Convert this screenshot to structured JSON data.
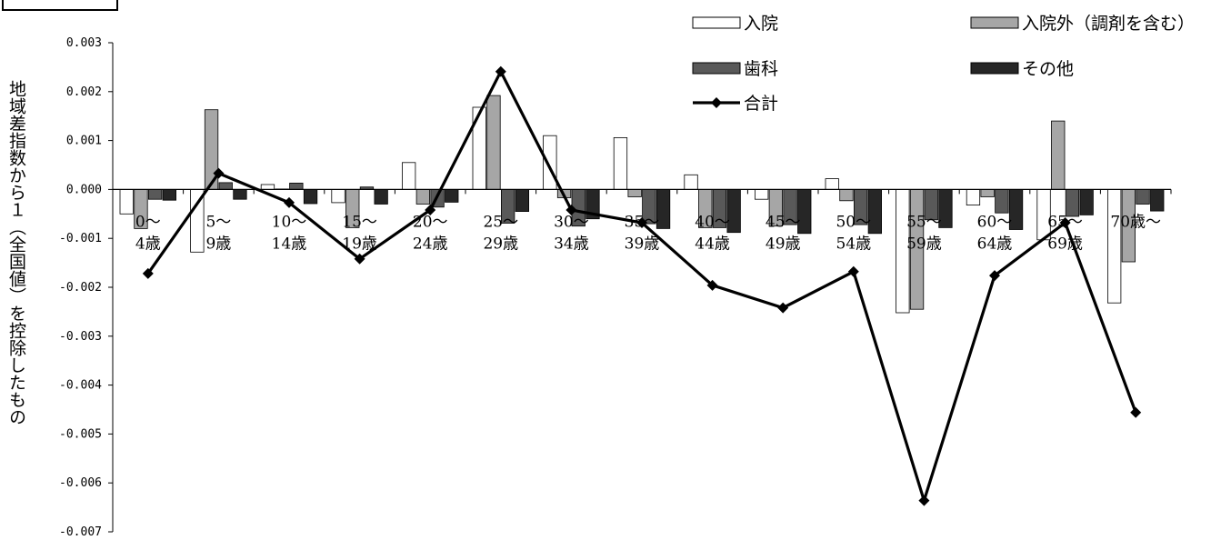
{
  "chart_data": {
    "type": "bar",
    "ylabel": "地域差指数から１（全国値）を控除したもの",
    "ylim": [
      -0.007,
      0.003
    ],
    "yticks": [
      "0.003",
      "0.002",
      "0.001",
      "0.000",
      "-0.001",
      "-0.002",
      "-0.003",
      "-0.004",
      "-0.005",
      "-0.006",
      "-0.007"
    ],
    "categories": [
      [
        "0～",
        "4歳"
      ],
      [
        "5～",
        "9歳"
      ],
      [
        "10～",
        "14歳"
      ],
      [
        "15～",
        "19歳"
      ],
      [
        "20～",
        "24歳"
      ],
      [
        "25～",
        "29歳"
      ],
      [
        "30～",
        "34歳"
      ],
      [
        "35～",
        "39歳"
      ],
      [
        "40～",
        "44歳"
      ],
      [
        "45～",
        "49歳"
      ],
      [
        "50～",
        "54歳"
      ],
      [
        "55～",
        "59歳"
      ],
      [
        "60～",
        "64歳"
      ],
      [
        "65～",
        "69歳"
      ],
      [
        "70歳～",
        ""
      ]
    ],
    "series": [
      {
        "name": "入院",
        "kind": "bar",
        "color": "#ffffff",
        "values": [
          -0.0005,
          -0.00128,
          0.0001,
          -0.00027,
          0.00055,
          0.00168,
          0.0011,
          0.00106,
          0.0003,
          -0.0002,
          0.00022,
          -0.00252,
          -0.00032,
          -0.00103,
          -0.00232
        ]
      },
      {
        "name": "入院外（調剤を含む）",
        "kind": "bar",
        "color": "#a6a6a6",
        "values": [
          -0.0008,
          0.00163,
          1e-05,
          -0.00078,
          -0.0003,
          0.00192,
          -0.00017,
          -0.00015,
          -0.00078,
          -0.00075,
          -0.00023,
          -0.00245,
          -0.00015,
          0.0014,
          -0.00148
        ]
      },
      {
        "name": "歯科",
        "kind": "bar",
        "color": "#595959",
        "values": [
          -0.0002,
          0.00014,
          0.00013,
          5e-05,
          -0.00036,
          -0.00069,
          -0.00075,
          -0.0007,
          -0.00078,
          -0.00072,
          -0.00072,
          -0.00062,
          -0.00048,
          -0.00055,
          -0.0003
        ]
      },
      {
        "name": "その他",
        "kind": "bar",
        "color": "#262626",
        "values": [
          -0.00022,
          -0.0002,
          -0.00029,
          -0.0003,
          -0.00026,
          -0.00045,
          -0.0006,
          -0.0008,
          -0.00088,
          -0.0009,
          -0.0009,
          -0.00078,
          -0.00082,
          -0.00052,
          -0.00044
        ]
      },
      {
        "name": "合計",
        "kind": "line",
        "color": "#000000",
        "values": [
          -0.00172,
          0.00033,
          -0.00027,
          -0.00142,
          -0.00042,
          0.00241,
          -0.00042,
          -0.00068,
          -0.00196,
          -0.00242,
          -0.00168,
          -0.00636,
          -0.00176,
          -0.00068,
          -0.00456
        ]
      }
    ],
    "legend": "top-right",
    "grid": false
  }
}
